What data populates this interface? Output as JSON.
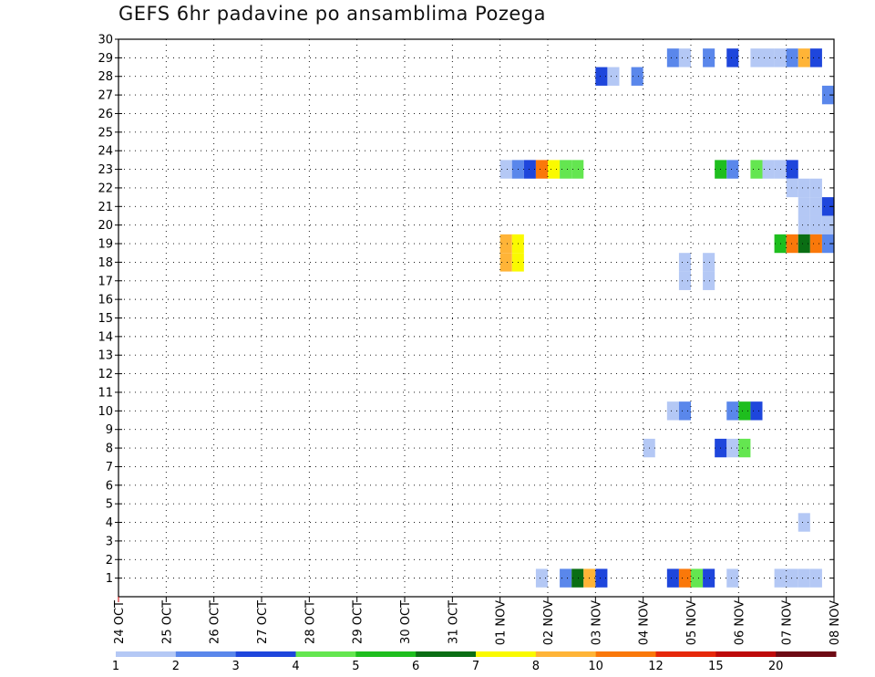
{
  "chart_data": {
    "type": "heatmap",
    "title": "GEFS 6hr padavine po ansamblima Pozega",
    "xlabel": "",
    "ylabel": "",
    "y_ticks": [
      1,
      2,
      3,
      4,
      5,
      6,
      7,
      8,
      9,
      10,
      11,
      12,
      13,
      14,
      15,
      16,
      17,
      18,
      19,
      20,
      21,
      22,
      23,
      24,
      25,
      26,
      27,
      28,
      29,
      30
    ],
    "x_ticks": [
      "24 OCT",
      "25 OCT",
      "26 OCT",
      "27 OCT",
      "28 OCT",
      "29 OCT",
      "30 OCT",
      "31 OCT",
      "01 NOV",
      "02 NOV",
      "03 NOV",
      "04 NOV",
      "05 NOV",
      "06 NOV",
      "07 NOV",
      "08 NOV"
    ],
    "x_unit": "days since 24 OCT (6-hour steps)",
    "grid": true,
    "legend": {
      "placement": "bottom",
      "thresholds": [
        "1",
        "2",
        "3",
        "4",
        "5",
        "6",
        "7",
        "8",
        "10",
        "12",
        "15",
        "20"
      ],
      "colors": [
        "#b4c8f5",
        "#5a87eb",
        "#1e46dc",
        "#64e650",
        "#1ebe1e",
        "#0a6e14",
        "#fafa00",
        "#ffb437",
        "#fa780a",
        "#e6280a",
        "#be0a0a",
        "#6e0a14"
      ]
    },
    "cells": [
      {
        "member": 29,
        "t": 11.75,
        "bin": 2
      },
      {
        "member": 29,
        "t": 12.0,
        "bin": 1
      },
      {
        "member": 29,
        "t": 12.5,
        "bin": 2
      },
      {
        "member": 29,
        "t": 13.0,
        "bin": 3
      },
      {
        "member": 29,
        "t": 13.5,
        "bin": 1
      },
      {
        "member": 29,
        "t": 13.75,
        "bin": 1
      },
      {
        "member": 29,
        "t": 14.0,
        "bin": 1
      },
      {
        "member": 29,
        "t": 14.25,
        "bin": 2
      },
      {
        "member": 29,
        "t": 14.5,
        "bin": 8
      },
      {
        "member": 29,
        "t": 14.75,
        "bin": 3
      },
      {
        "member": 28,
        "t": 10.25,
        "bin": 3
      },
      {
        "member": 28,
        "t": 10.5,
        "bin": 1
      },
      {
        "member": 28,
        "t": 11.0,
        "bin": 2
      },
      {
        "member": 27,
        "t": 15.0,
        "bin": 2
      },
      {
        "member": 23,
        "t": 8.25,
        "bin": 1
      },
      {
        "member": 23,
        "t": 8.5,
        "bin": 2
      },
      {
        "member": 23,
        "t": 8.75,
        "bin": 3
      },
      {
        "member": 23,
        "t": 9.0,
        "bin": 9
      },
      {
        "member": 23,
        "t": 9.25,
        "bin": 7
      },
      {
        "member": 23,
        "t": 9.5,
        "bin": 4
      },
      {
        "member": 23,
        "t": 9.75,
        "bin": 4
      },
      {
        "member": 23,
        "t": 12.75,
        "bin": 5
      },
      {
        "member": 23,
        "t": 13.0,
        "bin": 2
      },
      {
        "member": 23,
        "t": 13.5,
        "bin": 4
      },
      {
        "member": 23,
        "t": 13.75,
        "bin": 1
      },
      {
        "member": 23,
        "t": 14.0,
        "bin": 1
      },
      {
        "member": 23,
        "t": 14.25,
        "bin": 3
      },
      {
        "member": 22,
        "t": 14.25,
        "bin": 1
      },
      {
        "member": 22,
        "t": 14.5,
        "bin": 1
      },
      {
        "member": 22,
        "t": 14.75,
        "bin": 1
      },
      {
        "member": 21,
        "t": 14.5,
        "bin": 1
      },
      {
        "member": 21,
        "t": 14.75,
        "bin": 1
      },
      {
        "member": 21,
        "t": 15.0,
        "bin": 3
      },
      {
        "member": 20,
        "t": 14.5,
        "bin": 1
      },
      {
        "member": 20,
        "t": 14.75,
        "bin": 1
      },
      {
        "member": 20,
        "t": 15.0,
        "bin": 1
      },
      {
        "member": 19,
        "t": 8.25,
        "bin": 8
      },
      {
        "member": 19,
        "t": 8.5,
        "bin": 7
      },
      {
        "member": 19,
        "t": 14.0,
        "bin": 5
      },
      {
        "member": 19,
        "t": 14.25,
        "bin": 9
      },
      {
        "member": 19,
        "t": 14.5,
        "bin": 6
      },
      {
        "member": 19,
        "t": 14.75,
        "bin": 9
      },
      {
        "member": 19,
        "t": 15.0,
        "bin": 2
      },
      {
        "member": 18,
        "t": 8.25,
        "bin": 8
      },
      {
        "member": 18,
        "t": 8.5,
        "bin": 7
      },
      {
        "member": 18,
        "t": 12.0,
        "bin": 1
      },
      {
        "member": 18,
        "t": 12.5,
        "bin": 1
      },
      {
        "member": 17,
        "t": 12.0,
        "bin": 1
      },
      {
        "member": 17,
        "t": 12.5,
        "bin": 1
      },
      {
        "member": 10,
        "t": 11.75,
        "bin": 1
      },
      {
        "member": 10,
        "t": 12.0,
        "bin": 2
      },
      {
        "member": 10,
        "t": 13.0,
        "bin": 2
      },
      {
        "member": 10,
        "t": 13.25,
        "bin": 5
      },
      {
        "member": 10,
        "t": 13.5,
        "bin": 3
      },
      {
        "member": 8,
        "t": 11.25,
        "bin": 1
      },
      {
        "member": 8,
        "t": 12.75,
        "bin": 3
      },
      {
        "member": 8,
        "t": 13.0,
        "bin": 1
      },
      {
        "member": 8,
        "t": 13.25,
        "bin": 4
      },
      {
        "member": 4,
        "t": 14.5,
        "bin": 1
      },
      {
        "member": 1,
        "t": 9.0,
        "bin": 1
      },
      {
        "member": 1,
        "t": 9.5,
        "bin": 2
      },
      {
        "member": 1,
        "t": 9.75,
        "bin": 6
      },
      {
        "member": 1,
        "t": 10.0,
        "bin": 8
      },
      {
        "member": 1,
        "t": 10.25,
        "bin": 3
      },
      {
        "member": 1,
        "t": 11.75,
        "bin": 3
      },
      {
        "member": 1,
        "t": 12.0,
        "bin": 9
      },
      {
        "member": 1,
        "t": 12.25,
        "bin": 4
      },
      {
        "member": 1,
        "t": 12.5,
        "bin": 3
      },
      {
        "member": 1,
        "t": 13.0,
        "bin": 1
      },
      {
        "member": 1,
        "t": 14.0,
        "bin": 1
      },
      {
        "member": 1,
        "t": 14.25,
        "bin": 1
      },
      {
        "member": 1,
        "t": 14.5,
        "bin": 1
      },
      {
        "member": 1,
        "t": 14.75,
        "bin": 1
      }
    ]
  }
}
